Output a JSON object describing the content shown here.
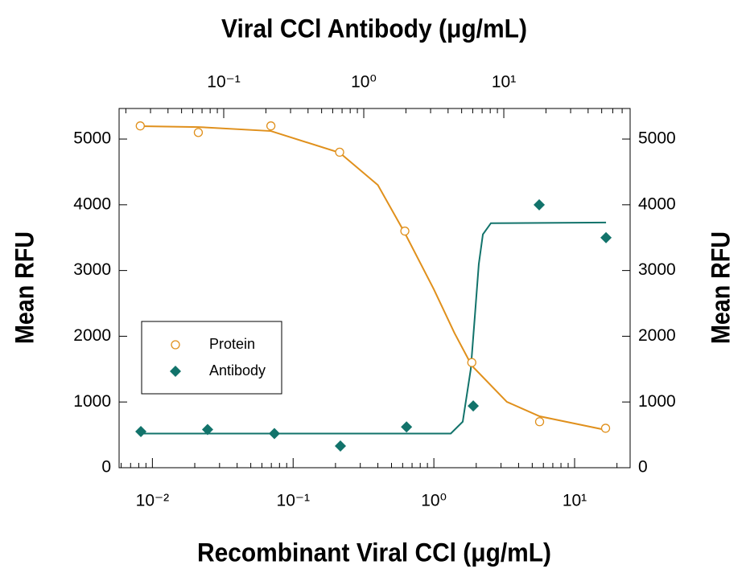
{
  "chart_data": {
    "type": "scatter",
    "x2label": "Viral CCl Antibody (μg/mL)",
    "xlabel": "Recombinant Viral CCl (μg/mL)",
    "ylabel": "Mean RFU",
    "y2label": "Mean RFU",
    "xscale": "log",
    "x2scale": "log",
    "xlim": [
      0.0058,
      24.8
    ],
    "xticks": [
      {
        "value": 0.01,
        "label": "10⁻²"
      },
      {
        "value": 0.1,
        "label": "10⁻¹"
      },
      {
        "value": 1,
        "label": "10⁰"
      },
      {
        "value": 10,
        "label": "10¹"
      }
    ],
    "x2lim": [
      0.0179,
      79.8
    ],
    "x2ticks": [
      {
        "value": 0.1,
        "label": "10⁻¹"
      },
      {
        "value": 1,
        "label": "10⁰"
      },
      {
        "value": 10,
        "label": "10¹"
      }
    ],
    "ylim": [
      0,
      5465
    ],
    "yticks": [
      0,
      1000,
      2000,
      3000,
      4000,
      5000
    ],
    "y2lim": [
      0,
      5465
    ],
    "y2ticks": [
      0,
      1000,
      2000,
      3000,
      4000,
      5000
    ],
    "minor_ticks": true,
    "legend": "center-left",
    "series": [
      {
        "name": "Protein",
        "color": "#e0901c",
        "marker": "open-circle",
        "xaxis": "x",
        "x": [
          0.0082,
          0.0212,
          0.0695,
          0.214,
          0.622,
          1.86,
          5.64,
          16.6
        ],
        "values": [
          5200,
          5100,
          5200,
          4800,
          3600,
          1600,
          700,
          600
        ]
      },
      {
        "name": "Antibody",
        "color": "#12736b",
        "marker": "diamond",
        "xaxis": "x2",
        "axis": "y2",
        "x": [
          0.0256,
          0.0767,
          0.23,
          0.681,
          2.02,
          6.05,
          17.9,
          53.7
        ],
        "values": [
          550,
          580,
          520,
          330,
          620,
          940,
          4000,
          3500
        ]
      }
    ],
    "fit_curves": [
      {
        "color": "#e0901c",
        "xaxis": "x",
        "x": [
          0.0082,
          0.0212,
          0.0695,
          0.214,
          0.4,
          0.622,
          1.0,
          1.4,
          1.86,
          3.3,
          5.64,
          16.6
        ],
        "values": [
          5196,
          5183,
          5122,
          4792,
          4300,
          3570,
          2714,
          2050,
          1553,
          1002,
          782,
          575
        ]
      },
      {
        "color": "#12736b",
        "xaxis": "x2",
        "axis": "y2",
        "x": [
          0.0256,
          4.18,
          5.09,
          5.81,
          6.21,
          6.63,
          7.09,
          8.09,
          53.7
        ],
        "values": [
          520,
          520,
          700,
          1500,
          2300,
          3100,
          3550,
          3720,
          3730
        ]
      }
    ]
  }
}
